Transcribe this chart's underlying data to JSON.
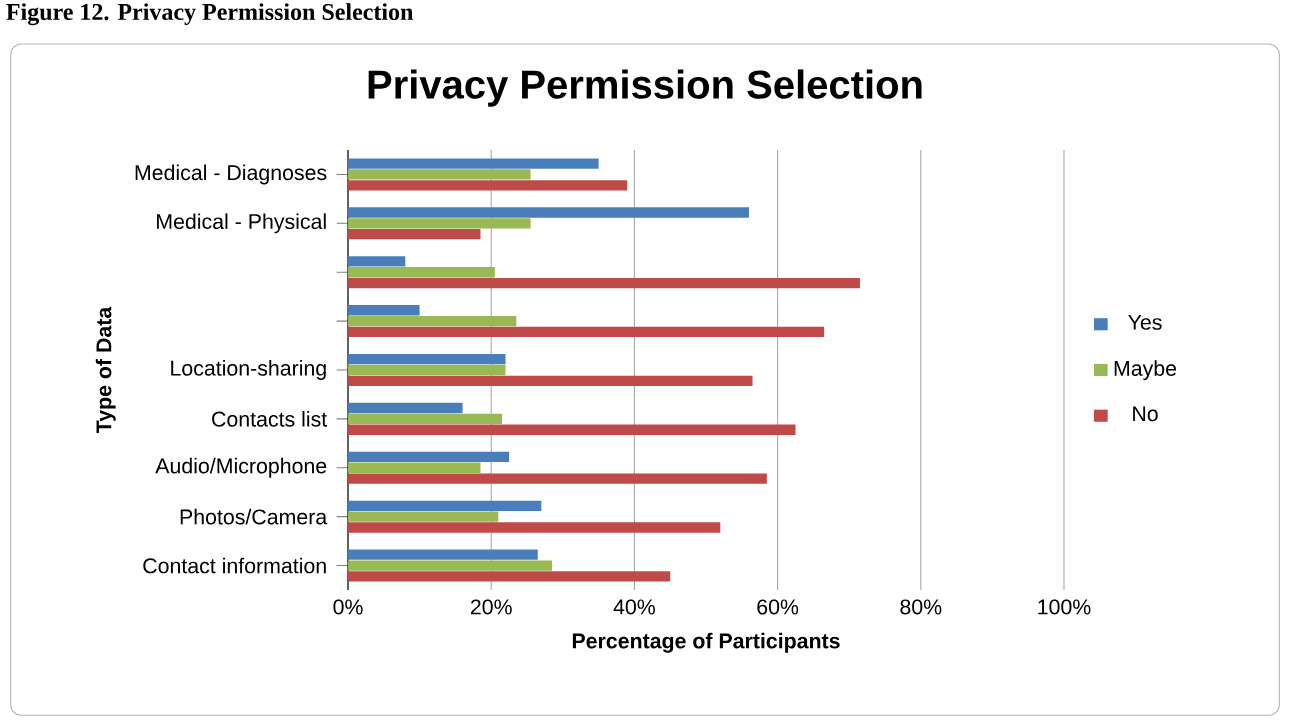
{
  "chart_data": {
    "type": "bar",
    "orientation": "horizontal",
    "title": "Privacy Permission Selection",
    "annotations": [
      "Figure 12. Privacy Permission Selection"
    ],
    "xlabel": "Percentage of Participants",
    "ylabel": "Type of Data",
    "categories": [
      "Medical - Diagnoses",
      "Medical - Physical",
      null,
      null,
      "Location-sharing",
      "Contacts list",
      "Audio/Microphone",
      "Photos/Camera",
      "Contact information"
    ],
    "series": [
      {
        "name": "Yes",
        "color": "#4a7ebb",
        "values": [
          35,
          56,
          8,
          10,
          22,
          16,
          22.5,
          27,
          26.5
        ]
      },
      {
        "name": "Maybe",
        "color": "#98b954",
        "values": [
          25.5,
          25.5,
          20.5,
          23.5,
          22,
          21.5,
          18.5,
          21,
          28.5
        ]
      },
      {
        "name": "No",
        "color": "#be4b48",
        "values": [
          39,
          18.5,
          71.5,
          66.5,
          56.5,
          62.5,
          58.5,
          52,
          45
        ]
      }
    ],
    "xlim": [
      0,
      100
    ],
    "xticks": [
      {
        "value": 0,
        "label": "0%"
      },
      {
        "value": 20,
        "label": "20%"
      },
      {
        "value": 40,
        "label": "40%"
      },
      {
        "value": 60,
        "label": "60%"
      },
      {
        "value": 80,
        "label": "80%"
      },
      {
        "value": 100,
        "label": "100%"
      }
    ],
    "grid": "x",
    "legend": "right"
  }
}
